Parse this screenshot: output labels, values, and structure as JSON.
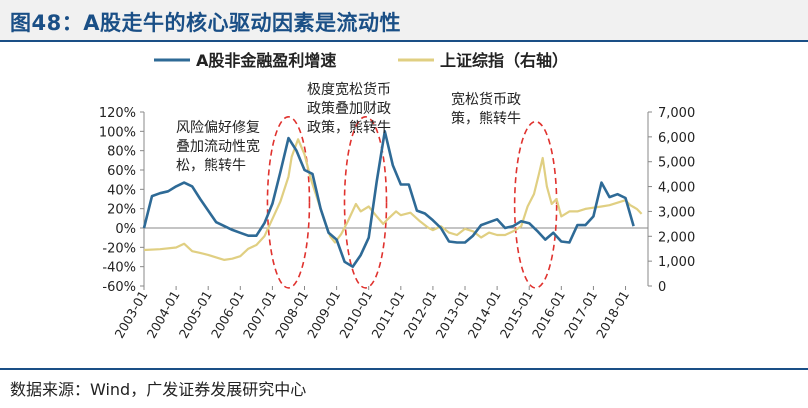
{
  "title": "图48：A股走牛的核心驱动因素是流动性",
  "source": "数据来源：Wind，广发证券发展研究中心",
  "chart_data": {
    "type": "line",
    "series": [
      {
        "name": "A股非金融盈利增速",
        "axis": "left",
        "color": "#2e6a96",
        "points": [
          [
            2003.0,
            0
          ],
          [
            2003.25,
            33
          ],
          [
            2003.5,
            36
          ],
          [
            2003.75,
            38
          ],
          [
            2004.0,
            43
          ],
          [
            2004.25,
            47
          ],
          [
            2004.5,
            43
          ],
          [
            2004.75,
            30
          ],
          [
            2005.0,
            18
          ],
          [
            2005.25,
            6
          ],
          [
            2005.5,
            2
          ],
          [
            2005.75,
            -2
          ],
          [
            2006.0,
            -5
          ],
          [
            2006.25,
            -8
          ],
          [
            2006.5,
            -8
          ],
          [
            2006.75,
            5
          ],
          [
            2007.0,
            25
          ],
          [
            2007.25,
            58
          ],
          [
            2007.5,
            93
          ],
          [
            2007.75,
            80
          ],
          [
            2008.0,
            60
          ],
          [
            2008.25,
            56
          ],
          [
            2008.5,
            20
          ],
          [
            2008.75,
            -5
          ],
          [
            2009.0,
            -12
          ],
          [
            2009.25,
            -35
          ],
          [
            2009.5,
            -40
          ],
          [
            2009.75,
            -28
          ],
          [
            2010.0,
            -10
          ],
          [
            2010.25,
            48
          ],
          [
            2010.5,
            100
          ],
          [
            2010.75,
            65
          ],
          [
            2011.0,
            45
          ],
          [
            2011.25,
            45
          ],
          [
            2011.5,
            18
          ],
          [
            2011.75,
            15
          ],
          [
            2012.0,
            8
          ],
          [
            2012.25,
            0
          ],
          [
            2012.5,
            -14
          ],
          [
            2012.75,
            -15
          ],
          [
            2013.0,
            -15
          ],
          [
            2013.25,
            -8
          ],
          [
            2013.5,
            3
          ],
          [
            2013.75,
            6
          ],
          [
            2014.0,
            9
          ],
          [
            2014.25,
            0
          ],
          [
            2014.5,
            2
          ],
          [
            2014.75,
            7
          ],
          [
            2015.0,
            5
          ],
          [
            2015.25,
            -3
          ],
          [
            2015.5,
            -12
          ],
          [
            2015.75,
            -5
          ],
          [
            2016.0,
            -14
          ],
          [
            2016.25,
            -15
          ],
          [
            2016.5,
            3
          ],
          [
            2016.75,
            3
          ],
          [
            2017.0,
            12
          ],
          [
            2017.25,
            47
          ],
          [
            2017.5,
            32
          ],
          [
            2017.75,
            35
          ],
          [
            2018.0,
            31
          ],
          [
            2018.25,
            2
          ]
        ]
      },
      {
        "name": "上证综指（右轴）",
        "axis": "right",
        "color": "#e0cf82",
        "points": [
          [
            2003.0,
            1450
          ],
          [
            2003.5,
            1480
          ],
          [
            2004.0,
            1550
          ],
          [
            2004.25,
            1700
          ],
          [
            2004.5,
            1400
          ],
          [
            2004.75,
            1330
          ],
          [
            2005.0,
            1250
          ],
          [
            2005.25,
            1150
          ],
          [
            2005.5,
            1050
          ],
          [
            2005.75,
            1100
          ],
          [
            2006.0,
            1200
          ],
          [
            2006.25,
            1500
          ],
          [
            2006.5,
            1650
          ],
          [
            2006.75,
            2000
          ],
          [
            2007.0,
            2700
          ],
          [
            2007.25,
            3400
          ],
          [
            2007.5,
            4400
          ],
          [
            2007.6,
            5200
          ],
          [
            2007.8,
            5900
          ],
          [
            2008.0,
            5300
          ],
          [
            2008.2,
            4300
          ],
          [
            2008.4,
            3500
          ],
          [
            2008.6,
            2700
          ],
          [
            2008.8,
            2000
          ],
          [
            2008.95,
            1750
          ],
          [
            2009.15,
            2100
          ],
          [
            2009.35,
            2600
          ],
          [
            2009.6,
            3300
          ],
          [
            2009.75,
            3000
          ],
          [
            2010.0,
            3200
          ],
          [
            2010.25,
            2800
          ],
          [
            2010.45,
            2500
          ],
          [
            2010.6,
            2700
          ],
          [
            2010.85,
            3000
          ],
          [
            2011.0,
            2850
          ],
          [
            2011.3,
            2950
          ],
          [
            2011.6,
            2600
          ],
          [
            2011.85,
            2350
          ],
          [
            2012.0,
            2250
          ],
          [
            2012.25,
            2400
          ],
          [
            2012.5,
            2150
          ],
          [
            2012.75,
            2050
          ],
          [
            2013.0,
            2300
          ],
          [
            2013.25,
            2200
          ],
          [
            2013.5,
            1950
          ],
          [
            2013.75,
            2150
          ],
          [
            2014.0,
            2050
          ],
          [
            2014.25,
            2050
          ],
          [
            2014.5,
            2200
          ],
          [
            2014.75,
            2400
          ],
          [
            2014.95,
            3200
          ],
          [
            2015.15,
            3700
          ],
          [
            2015.3,
            4500
          ],
          [
            2015.42,
            5150
          ],
          [
            2015.55,
            4000
          ],
          [
            2015.7,
            3300
          ],
          [
            2015.85,
            3500
          ],
          [
            2016.0,
            2800
          ],
          [
            2016.25,
            3000
          ],
          [
            2016.5,
            3000
          ],
          [
            2016.75,
            3100
          ],
          [
            2017.0,
            3150
          ],
          [
            2017.25,
            3200
          ],
          [
            2017.5,
            3250
          ],
          [
            2017.75,
            3350
          ],
          [
            2018.0,
            3450
          ],
          [
            2018.15,
            3250
          ],
          [
            2018.35,
            3100
          ],
          [
            2018.5,
            2900
          ]
        ]
      }
    ],
    "x_ticks": [
      "2003-01",
      "2004-01",
      "2005-01",
      "2006-01",
      "2007-01",
      "2008-01",
      "2009-01",
      "2010-01",
      "2011-01",
      "2012-01",
      "2013-01",
      "2014-01",
      "2015-01",
      "2016-01",
      "2017-01",
      "2018-01"
    ],
    "y_left": {
      "ticks": [
        "-60%",
        "-40%",
        "-20%",
        "0%",
        "20%",
        "40%",
        "60%",
        "80%",
        "100%",
        "120%"
      ],
      "range": [
        -60,
        120
      ]
    },
    "y_right": {
      "ticks": [
        "0",
        "1,000",
        "2,000",
        "3,000",
        "4,000",
        "5,000",
        "6,000",
        "7,000"
      ],
      "range": [
        0,
        7000
      ]
    },
    "legend": {
      "placement": "top"
    },
    "grid": false,
    "annotations": [
      {
        "lines": [
          "风险偏好修复",
          "叠加流动性宽",
          "松，熊转牛"
        ]
      },
      {
        "lines": [
          "极度宽松货币",
          "政策叠加财政",
          "政策，熊转牛"
        ]
      },
      {
        "lines": [
          "宽松货币政",
          "策，熊转牛"
        ]
      }
    ],
    "highlights": [
      {
        "x_center": 2007.5,
        "y_top": 115,
        "y_bottom": -62
      },
      {
        "x_center": 2009.9,
        "y_top": 115,
        "y_bottom": -62
      },
      {
        "x_center": 2015.2,
        "y_top": 110,
        "y_bottom": -62
      }
    ]
  }
}
